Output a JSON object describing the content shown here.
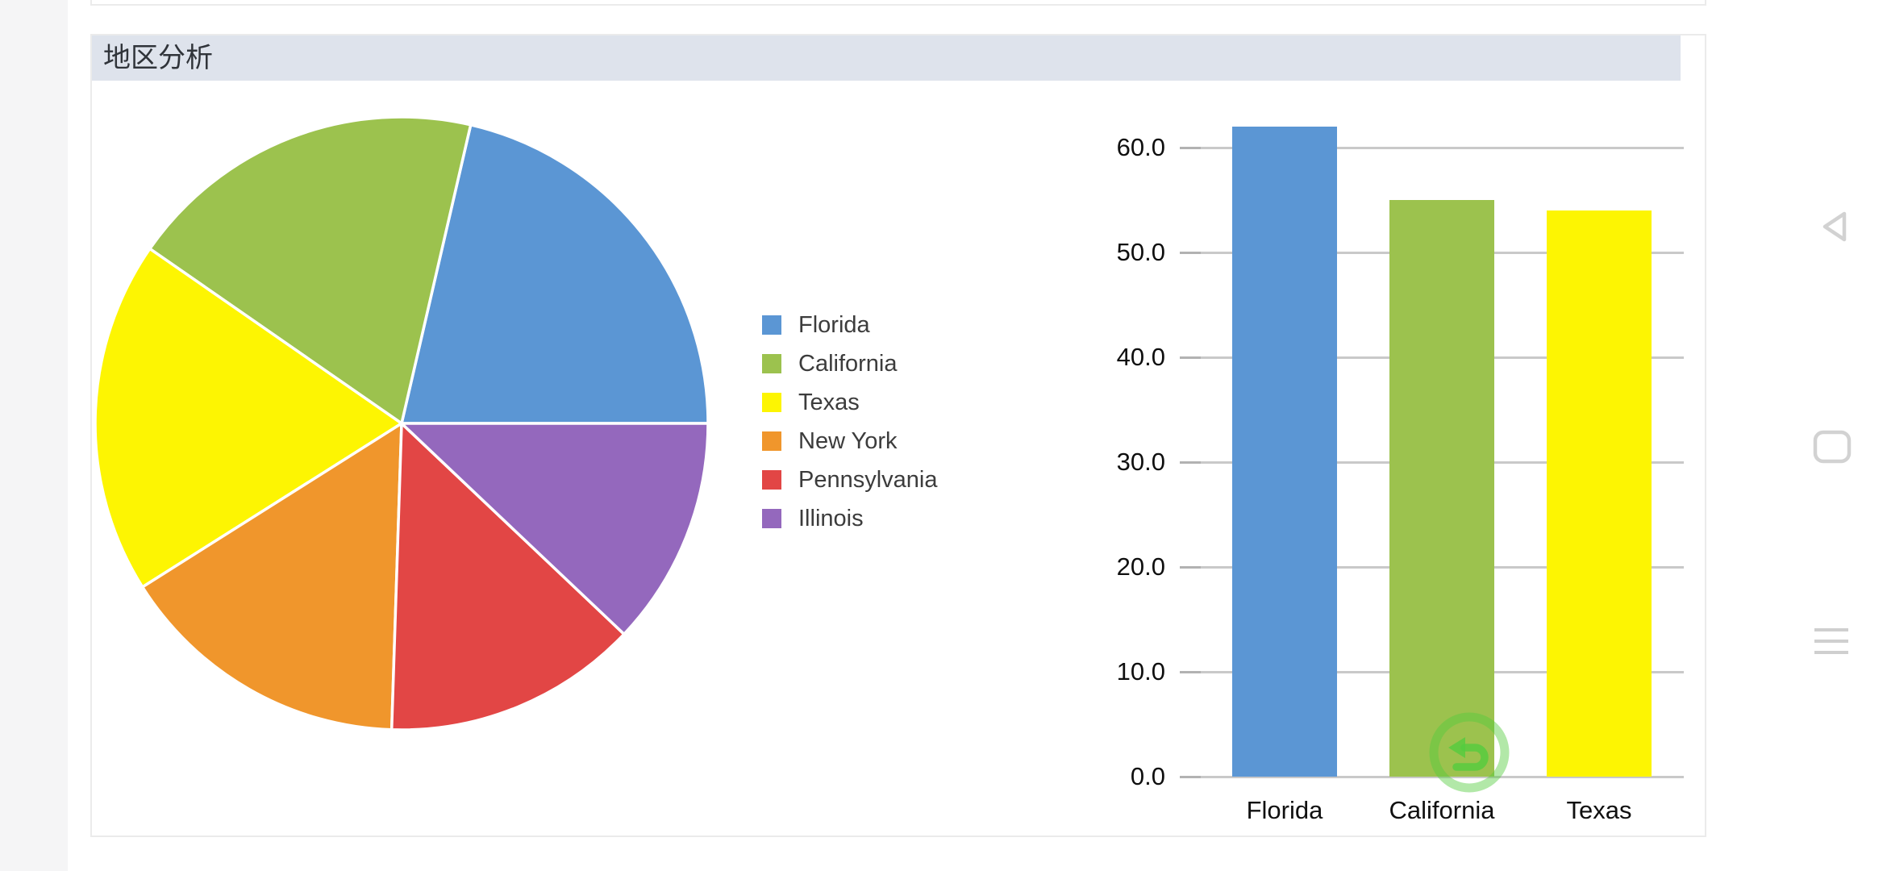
{
  "card": {
    "title": "地区分析",
    "header_color": "#dee3ec"
  },
  "chart_data": [
    {
      "type": "pie",
      "title": "地区分析",
      "legend_position": "right",
      "direction": "counterclockwise",
      "start_angle": "east",
      "series": [
        {
          "name": "Florida",
          "value": 62,
          "color": "#5b96d4"
        },
        {
          "name": "California",
          "value": 55,
          "color": "#9cc24e"
        },
        {
          "name": "Texas",
          "value": 54,
          "color": "#fdf502"
        },
        {
          "name": "New York",
          "value": 45,
          "color": "#f0962c"
        },
        {
          "name": "Pennsylvania",
          "value": 39,
          "color": "#e24645"
        },
        {
          "name": "Illinois",
          "value": 35,
          "color": "#9468bd"
        }
      ]
    },
    {
      "type": "bar",
      "categories": [
        "Florida",
        "California",
        "Texas"
      ],
      "values": [
        62,
        55,
        54
      ],
      "colors": [
        "#5b96d4",
        "#9cc24e",
        "#fdf502"
      ],
      "ylim": [
        0,
        60
      ],
      "ytick_step": 10,
      "ytick_labels": [
        "0.0",
        "10.0",
        "20.0",
        "30.0",
        "40.0",
        "50.0",
        "60.0"
      ],
      "grid": true,
      "gridline_color": "#c9c9c9"
    }
  ],
  "overlay": {
    "icon": "undo-gesture-indicator",
    "color": "#54cc3e"
  },
  "android_nav": {
    "icon_color": "#d2d2d2",
    "items": [
      {
        "icon": "back-triangle-icon",
        "action": "back"
      },
      {
        "icon": "home-square-icon",
        "action": "home"
      },
      {
        "icon": "recents-lines-icon",
        "action": "recents"
      }
    ]
  }
}
